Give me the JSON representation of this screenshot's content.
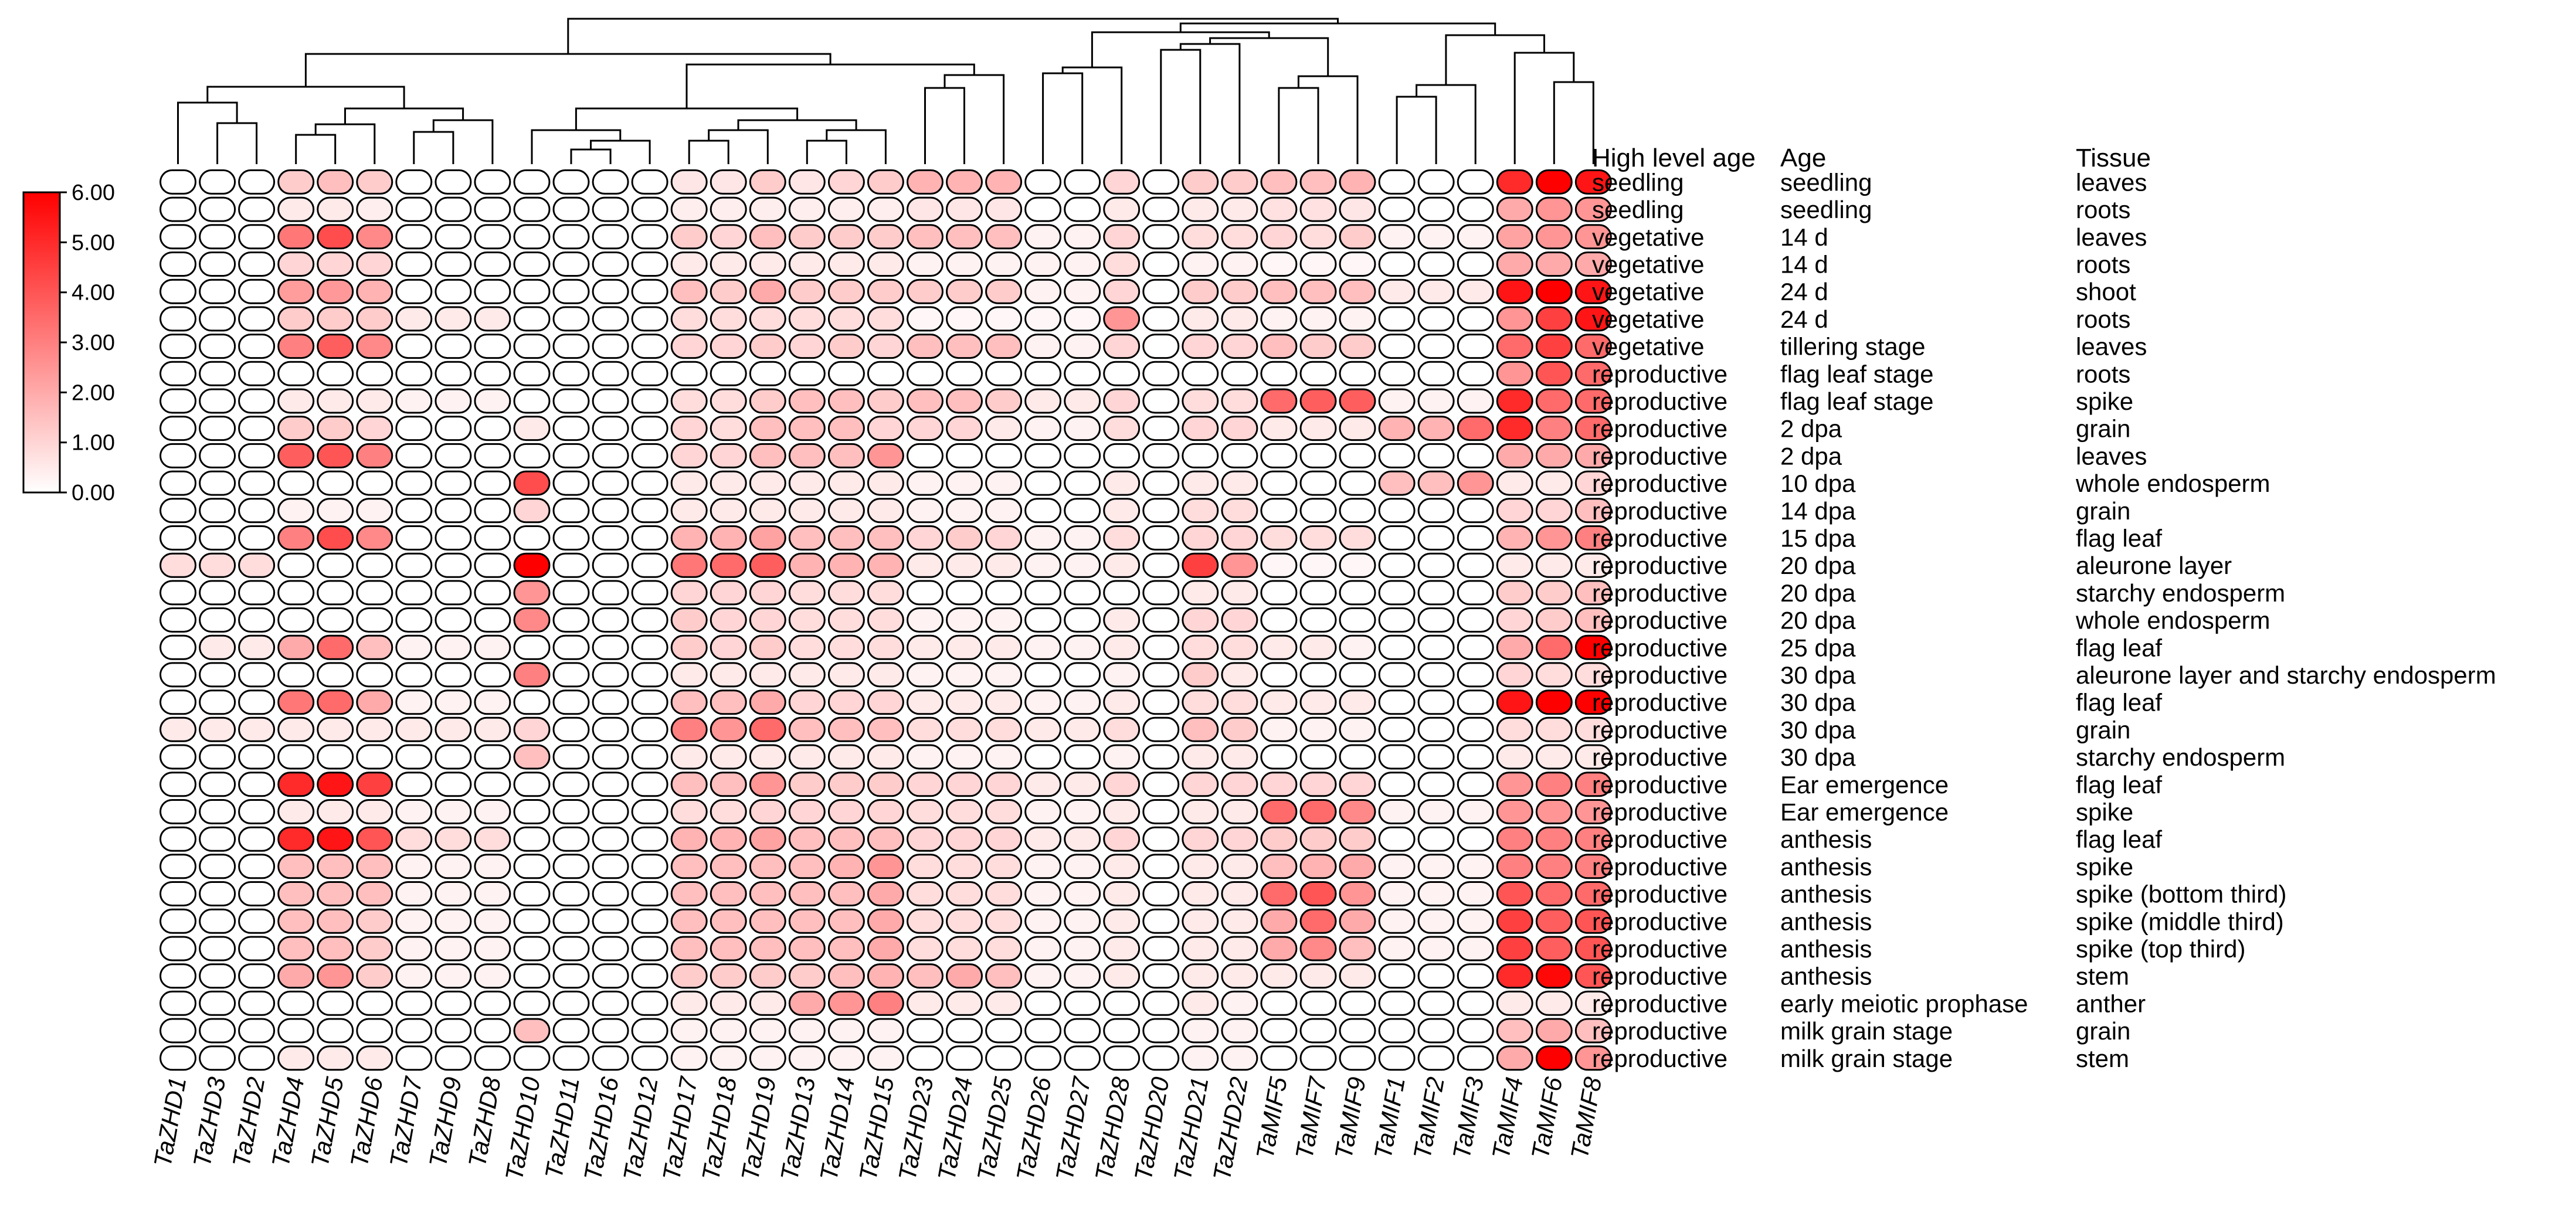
{
  "chart_data": {
    "type": "heatmap",
    "title": "",
    "xlabel": "",
    "ylabel": "",
    "columns": [
      "TaZHD1",
      "TaZHD3",
      "TaZHD2",
      "TaZHD4",
      "TaZHD5",
      "TaZHD6",
      "TaZHD7",
      "TaZHD9",
      "TaZHD8",
      "TaZHD10",
      "TaZHD11",
      "TaZHD16",
      "TaZHD12",
      "TaZHD17",
      "TaZHD18",
      "TaZHD19",
      "TaZHD13",
      "TaZHD14",
      "TaZHD15",
      "TaZHD23",
      "TaZHD24",
      "TaZHD25",
      "TaZHD26",
      "TaZHD27",
      "TaZHD28",
      "TaZHD20",
      "TaZHD21",
      "TaZHD22",
      "TaMIF5",
      "TaMIF7",
      "TaMIF9",
      "TaMIF1",
      "TaMIF2",
      "TaMIF3",
      "TaMIF4",
      "TaMIF6",
      "TaMIF8"
    ],
    "annotation_headers": [
      "High level age",
      "Age",
      "Tissue"
    ],
    "rows": [
      [
        "seedling",
        "seedling",
        "leaves"
      ],
      [
        "seedling",
        "seedling",
        "roots"
      ],
      [
        "vegetative",
        "14 d",
        "leaves"
      ],
      [
        "vegetative",
        "14 d",
        "roots"
      ],
      [
        "vegetative",
        "24 d",
        "shoot"
      ],
      [
        "vegetative",
        "24 d",
        "roots"
      ],
      [
        "vegetative",
        "tillering stage",
        "leaves"
      ],
      [
        "reproductive",
        "flag leaf stage",
        "roots"
      ],
      [
        "reproductive",
        "flag leaf stage",
        "spike"
      ],
      [
        "reproductive",
        "2 dpa",
        "grain"
      ],
      [
        "reproductive",
        "2 dpa",
        "leaves"
      ],
      [
        "reproductive",
        "10 dpa",
        "whole endosperm"
      ],
      [
        "reproductive",
        "14 dpa",
        "grain"
      ],
      [
        "reproductive",
        "15 dpa",
        "flag leaf"
      ],
      [
        "reproductive",
        "20 dpa",
        "aleurone layer"
      ],
      [
        "reproductive",
        "20 dpa",
        "starchy endosperm"
      ],
      [
        "reproductive",
        "20 dpa",
        "whole endosperm"
      ],
      [
        "reproductive",
        "25 dpa",
        "flag leaf"
      ],
      [
        "reproductive",
        "30 dpa",
        "aleurone layer and starchy endosperm"
      ],
      [
        "reproductive",
        "30 dpa",
        "flag leaf"
      ],
      [
        "reproductive",
        "30 dpa",
        "grain"
      ],
      [
        "reproductive",
        "30 dpa",
        "starchy endosperm"
      ],
      [
        "reproductive",
        "Ear emergence",
        "flag leaf"
      ],
      [
        "reproductive",
        "Ear emergence",
        "spike"
      ],
      [
        "reproductive",
        "anthesis",
        "flag leaf"
      ],
      [
        "reproductive",
        "anthesis",
        "spike"
      ],
      [
        "reproductive",
        "anthesis",
        "spike (bottom third)"
      ],
      [
        "reproductive",
        "anthesis",
        "spike (middle third)"
      ],
      [
        "reproductive",
        "anthesis",
        "spike (top third)"
      ],
      [
        "reproductive",
        "anthesis",
        "stem"
      ],
      [
        "reproductive",
        "early meiotic prophase",
        "anther"
      ],
      [
        "reproductive",
        "milk grain stage",
        "grain"
      ],
      [
        "reproductive",
        "milk grain stage",
        "stem"
      ]
    ],
    "values": [
      [
        0,
        0,
        0,
        1.2,
        1.5,
        1.2,
        0,
        0,
        0,
        0,
        0,
        0,
        0,
        0.6,
        0.6,
        1.2,
        0.6,
        1,
        1.2,
        1.8,
        1.8,
        1.8,
        0,
        0,
        1,
        0,
        1.2,
        1.2,
        1.5,
        1.5,
        1.8,
        0,
        0,
        0,
        5,
        6,
        5.5
      ],
      [
        0,
        0,
        0,
        0.5,
        0.5,
        0.4,
        0,
        0,
        0,
        0,
        0,
        0,
        0,
        0.4,
        0.4,
        0.4,
        0.4,
        0.4,
        0.4,
        0.6,
        0.6,
        0.6,
        0,
        0,
        0.5,
        0,
        0.5,
        0.5,
        0.7,
        0.7,
        0.6,
        0,
        0,
        0,
        2,
        2.5,
        2.5
      ],
      [
        0,
        0,
        0,
        3.2,
        4.2,
        2.8,
        0,
        0,
        0,
        0,
        0,
        0,
        0,
        1.2,
        1,
        1.5,
        1.2,
        1.2,
        1.2,
        1.5,
        1.5,
        1.5,
        0.3,
        0.3,
        1,
        0,
        0.8,
        0.8,
        1,
        0.8,
        1.2,
        0.3,
        0.3,
        0.3,
        2.2,
        2.5,
        2.5
      ],
      [
        0,
        0,
        0,
        1,
        1,
        1,
        0,
        0,
        0,
        0,
        0,
        0,
        0,
        0.5,
        0.5,
        0.5,
        0.5,
        0.5,
        0.5,
        0.3,
        0.3,
        0.3,
        0.3,
        0.3,
        0.8,
        0,
        0.3,
        0.3,
        0.2,
        0.2,
        0.2,
        0,
        0,
        0,
        2,
        2,
        2
      ],
      [
        0,
        0,
        0,
        2.3,
        2.4,
        1.8,
        0,
        0,
        0,
        0,
        0,
        0,
        0,
        1.5,
        1.2,
        2,
        1.2,
        1.2,
        1.2,
        1.2,
        1.2,
        1.2,
        0.3,
        0.3,
        1,
        0,
        1.2,
        1.2,
        1.5,
        1.5,
        1.5,
        0.5,
        0.5,
        0.5,
        5.5,
        6,
        5.5
      ],
      [
        0,
        0,
        0,
        1.2,
        1.2,
        1.2,
        0.5,
        0.5,
        0.5,
        0,
        0,
        0,
        0,
        0.8,
        0.8,
        0.8,
        0.8,
        0.8,
        0.8,
        0.2,
        0.2,
        0.2,
        0.2,
        0.2,
        2.5,
        0,
        0.5,
        0.5,
        0.3,
        0.3,
        0.3,
        0,
        0,
        0,
        2.5,
        4.5,
        5.5
      ],
      [
        0,
        0,
        0,
        3,
        3.8,
        2.8,
        0,
        0,
        0,
        0,
        0,
        0,
        0,
        1,
        1,
        1.2,
        1,
        1.2,
        1,
        1.5,
        1.5,
        1.5,
        0.3,
        0.3,
        1,
        0,
        1,
        1,
        1.5,
        1.2,
        1.2,
        0,
        0,
        0,
        3.5,
        4.5,
        3.5
      ],
      [
        0,
        0,
        0,
        0,
        0,
        0,
        0,
        0,
        0,
        0,
        0,
        0,
        0,
        0,
        0,
        0,
        0,
        0,
        0,
        0,
        0,
        0,
        0,
        0,
        0,
        0,
        0,
        0,
        0,
        0,
        0,
        0,
        0,
        0,
        2.5,
        4,
        3.5
      ],
      [
        0,
        0,
        0,
        0.5,
        0.5,
        0.5,
        0.3,
        0.3,
        0.3,
        0,
        0,
        0,
        0,
        0.8,
        0.8,
        1.2,
        1.5,
        1.5,
        1.2,
        1.5,
        1.5,
        1.2,
        0.5,
        0.5,
        1,
        0,
        0.8,
        0.8,
        3.5,
        3.8,
        3.8,
        0.3,
        0.3,
        0.3,
        5,
        3.5,
        3.5
      ],
      [
        0,
        0,
        0,
        1.2,
        1.2,
        1,
        0,
        0,
        0,
        0.5,
        0,
        0,
        0,
        1,
        0.8,
        1.5,
        1.5,
        1.5,
        1,
        1,
        1,
        0.5,
        0.3,
        0.3,
        0.8,
        0,
        1,
        1,
        0.5,
        0.5,
        0.5,
        1.8,
        1.8,
        3.5,
        5,
        3,
        3.5
      ],
      [
        0,
        0,
        0,
        3.8,
        4,
        3,
        0,
        0,
        0,
        0,
        0,
        0,
        0,
        1,
        1,
        1.5,
        1.5,
        1.5,
        2.5,
        0,
        0,
        0,
        0,
        0,
        0,
        0,
        0,
        0,
        0,
        0,
        0,
        0,
        0,
        0,
        2,
        2,
        2
      ],
      [
        0,
        0,
        0,
        0,
        0,
        0,
        0,
        0,
        0,
        4.2,
        0,
        0,
        0,
        0.5,
        0.5,
        0.5,
        0.5,
        0.5,
        0.5,
        0.3,
        0.3,
        0.3,
        0,
        0,
        0.5,
        0,
        0.5,
        0.5,
        0,
        0,
        0,
        1.5,
        1.5,
        2.5,
        0.5,
        0.5,
        1
      ],
      [
        0,
        0,
        0,
        0.3,
        0.3,
        0.3,
        0,
        0,
        0,
        1,
        0,
        0,
        0,
        0.5,
        0.5,
        0.5,
        0.5,
        0.5,
        0.5,
        0.3,
        0.3,
        0.3,
        0,
        0,
        0.5,
        0,
        0.8,
        0.8,
        0,
        0,
        0,
        0,
        0,
        0,
        1,
        1,
        1.5
      ],
      [
        0,
        0,
        0,
        3,
        4.2,
        2.8,
        0,
        0,
        0,
        0,
        0,
        0,
        0,
        1.8,
        1.8,
        2.2,
        1.5,
        1.5,
        1.5,
        1,
        1.2,
        1,
        0.3,
        0.3,
        0.8,
        0,
        1,
        1,
        0.8,
        0.8,
        0.8,
        0,
        0,
        0,
        1.8,
        2.5,
        3
      ],
      [
        0.8,
        0.8,
        0.8,
        0,
        0,
        0,
        0,
        0,
        0,
        6,
        0,
        0,
        0,
        3.2,
        3.5,
        3.8,
        1.8,
        1.8,
        1.8,
        0.5,
        0.5,
        0.5,
        0.3,
        0.3,
        0.5,
        0,
        4.5,
        2.5,
        0.2,
        0.2,
        0.2,
        0,
        0,
        0,
        0.5,
        0.5,
        0.5
      ],
      [
        0,
        0,
        0,
        0,
        0,
        0,
        0,
        0,
        0,
        2.5,
        0,
        0,
        0,
        1,
        1,
        1,
        0.8,
        0.8,
        0.8,
        0,
        0,
        0,
        0,
        0,
        0,
        0,
        0.5,
        0.5,
        0,
        0,
        0,
        0,
        0,
        0,
        1.2,
        1.2,
        1.5
      ],
      [
        0,
        0,
        0,
        0,
        0,
        0,
        0,
        0,
        0,
        2.8,
        0,
        0,
        0,
        1.2,
        1,
        1,
        0.8,
        0.8,
        0.8,
        0.3,
        0.3,
        0.3,
        0,
        0,
        0.5,
        0,
        1,
        1,
        0,
        0,
        0,
        0,
        0,
        0,
        1,
        1.2,
        1.5
      ],
      [
        0,
        0.5,
        0.5,
        2,
        3.5,
        1.5,
        0.3,
        0.3,
        0.3,
        0,
        0,
        0,
        0,
        1.2,
        1,
        1.2,
        0.8,
        0.8,
        0.8,
        0.5,
        0.5,
        0.5,
        0.3,
        0.3,
        0.5,
        0,
        0.8,
        0.8,
        0.5,
        0.5,
        0.3,
        0,
        0,
        0,
        2,
        3.5,
        6
      ],
      [
        0,
        0,
        0,
        0,
        0,
        0,
        0,
        0,
        0,
        3,
        0,
        0,
        0,
        0.5,
        0.5,
        0.5,
        0.5,
        0.5,
        0.5,
        0.3,
        0.3,
        0.3,
        0,
        0,
        0.3,
        0,
        1.2,
        0.5,
        0,
        0,
        0,
        0,
        0,
        0,
        1,
        0.8,
        0.8
      ],
      [
        0,
        0,
        0,
        3.2,
        3.5,
        2,
        0.3,
        0.3,
        0.3,
        0,
        0,
        0,
        0,
        1.5,
        1.5,
        2,
        1,
        1,
        1,
        0.5,
        0.5,
        0.5,
        0.3,
        0.3,
        0.5,
        0,
        0.8,
        0.8,
        0.5,
        0.5,
        0.5,
        0,
        0,
        0,
        5.5,
        6,
        6
      ],
      [
        0.5,
        0.5,
        0.5,
        0.5,
        0.5,
        0.5,
        0.5,
        0.5,
        0.5,
        1,
        0,
        0,
        0,
        3,
        2.5,
        3.5,
        1.5,
        1.5,
        1.5,
        0.8,
        0.8,
        0.8,
        0.5,
        0.5,
        0.8,
        0,
        1.5,
        1.2,
        0.3,
        0.3,
        0.3,
        0,
        0,
        0,
        0.8,
        0.8,
        0.8
      ],
      [
        0,
        0,
        0,
        0,
        0,
        0,
        0,
        0,
        0,
        1.5,
        0,
        0,
        0,
        0.5,
        0.5,
        0.5,
        0.5,
        0.5,
        0.5,
        0.3,
        0.3,
        0.3,
        0,
        0,
        0.3,
        0,
        0.5,
        0.5,
        0,
        0,
        0,
        0,
        0,
        0,
        0.5,
        0.5,
        0.5
      ],
      [
        0,
        0,
        0,
        5,
        5.5,
        4.5,
        0,
        0,
        0,
        0,
        0,
        0,
        0,
        1.5,
        1.5,
        2.5,
        1.2,
        1.2,
        1.2,
        1,
        1,
        1,
        0.5,
        0.5,
        1,
        0,
        1,
        1,
        1,
        1,
        1,
        0,
        0,
        0,
        2.5,
        3,
        3
      ],
      [
        0,
        0,
        0,
        0.5,
        0.5,
        0.5,
        0.3,
        0.3,
        0.3,
        0,
        0,
        0,
        0,
        0.8,
        0.8,
        1,
        1,
        1,
        1,
        0.8,
        0.8,
        0.8,
        0.3,
        0.3,
        0.5,
        0,
        0.5,
        0.5,
        3.5,
        3.5,
        2.8,
        0.3,
        0.3,
        0.3,
        2.5,
        2.5,
        2.5
      ],
      [
        0,
        0,
        0,
        5,
        5.5,
        4,
        0.8,
        0.8,
        0.8,
        0,
        0,
        0,
        0,
        1.8,
        1.8,
        2.2,
        1.5,
        1.5,
        1.5,
        1,
        1,
        1,
        0.5,
        0.5,
        1,
        0,
        1,
        1,
        1.2,
        1.2,
        1.2,
        0,
        0,
        0,
        3,
        3,
        3
      ],
      [
        0,
        0,
        0,
        1.5,
        1.5,
        1.5,
        0.3,
        0.3,
        0.3,
        0,
        0,
        0,
        0,
        1.5,
        1.5,
        1.5,
        1.5,
        1.8,
        2.5,
        0.8,
        0.8,
        0.8,
        0.3,
        0.3,
        0.5,
        0,
        0.5,
        0.5,
        1.5,
        1.8,
        2,
        0.3,
        0.3,
        0.3,
        3,
        3,
        3
      ],
      [
        0,
        0,
        0,
        1.5,
        1.5,
        1.5,
        0.3,
        0.3,
        0.3,
        0,
        0,
        0,
        0,
        1.5,
        1.5,
        1.5,
        1.5,
        1.5,
        2,
        0.8,
        0.8,
        0.8,
        0.3,
        0.3,
        0.5,
        0,
        0.5,
        0.5,
        3.5,
        4,
        2.5,
        0.3,
        0.3,
        0.3,
        4,
        3.5,
        3.5
      ],
      [
        0,
        0,
        0,
        1.5,
        1.5,
        1.2,
        0.3,
        0.3,
        0.3,
        0,
        0,
        0,
        0,
        1.5,
        1.5,
        1.5,
        1.5,
        1.5,
        2,
        0.8,
        0.8,
        0.8,
        0.3,
        0.3,
        0.5,
        0,
        0.5,
        0.5,
        2,
        3.5,
        2,
        0.3,
        0.3,
        0.3,
        4.5,
        3.8,
        4
      ],
      [
        0,
        0,
        0,
        1.5,
        1.5,
        1.2,
        0.3,
        0.3,
        0.3,
        0,
        0,
        0,
        0,
        1.5,
        1.5,
        1.5,
        1.5,
        1.5,
        2,
        0.8,
        0.8,
        0.8,
        0.3,
        0.3,
        0.5,
        0,
        0.5,
        0.5,
        2,
        2.8,
        1.5,
        0.3,
        0.3,
        0.3,
        4.5,
        3.8,
        4
      ],
      [
        0,
        0,
        0,
        2,
        2.5,
        1.2,
        0.3,
        0.3,
        0.3,
        0,
        0,
        0,
        0,
        1.2,
        1.2,
        1.2,
        1.2,
        1.5,
        1.8,
        1.5,
        2,
        1.5,
        0.3,
        0.3,
        0.5,
        0,
        0.5,
        0.5,
        0.5,
        0.5,
        0.5,
        0,
        0,
        0,
        5,
        5.8,
        4
      ],
      [
        0,
        0,
        0,
        0,
        0,
        0,
        0,
        0,
        0,
        0,
        0,
        0,
        0,
        0.5,
        0.5,
        0.5,
        2,
        2.5,
        3,
        0.5,
        0.5,
        0.5,
        0,
        0,
        0,
        0,
        0.5,
        0.3,
        0,
        0,
        0,
        0,
        0,
        0,
        0.5,
        0.5,
        0.5
      ],
      [
        0,
        0,
        0,
        0,
        0,
        0,
        0,
        0,
        0,
        1.5,
        0,
        0,
        0,
        0.3,
        0.3,
        0.3,
        0.3,
        0.3,
        0.3,
        0,
        0,
        0,
        0,
        0,
        0,
        0,
        0.3,
        0.3,
        0,
        0,
        0,
        0,
        0,
        0,
        1.5,
        2,
        1.5
      ],
      [
        0,
        0,
        0,
        0.5,
        0.5,
        0.5,
        0,
        0,
        0,
        0,
        0,
        0,
        0,
        0.3,
        0.3,
        0.3,
        0.3,
        0.3,
        0.3,
        0,
        0,
        0,
        0,
        0,
        0,
        0,
        0.3,
        0.3,
        0,
        0,
        0,
        0,
        0,
        0,
        2,
        6,
        2.5
      ]
    ],
    "color_scale": {
      "min": 0,
      "max": 6,
      "low_color": "#ffffff",
      "high_color": "#ff0000",
      "ticks": [
        "0.00",
        "1.00",
        "2.00",
        "3.00",
        "4.00",
        "5.00",
        "6.00"
      ]
    },
    "dendrogram": "column-clustering"
  }
}
